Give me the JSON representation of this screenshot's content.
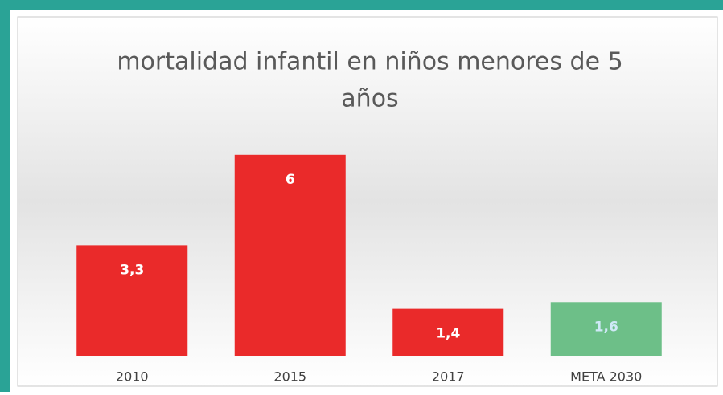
{
  "chart_data": {
    "type": "bar",
    "title": [
      "mortalidad infantil en niños menores de 5",
      "años"
    ],
    "categories": [
      "2010",
      "2015",
      "2017",
      "META 2030"
    ],
    "values": [
      3.3,
      6,
      1.4,
      1.6
    ],
    "value_labels": [
      "3,3",
      "6",
      "1,4",
      "1,6"
    ],
    "colors": [
      "#ea2a2a",
      "#ea2a2a",
      "#ea2a2a",
      "#6dbf88"
    ]
  }
}
